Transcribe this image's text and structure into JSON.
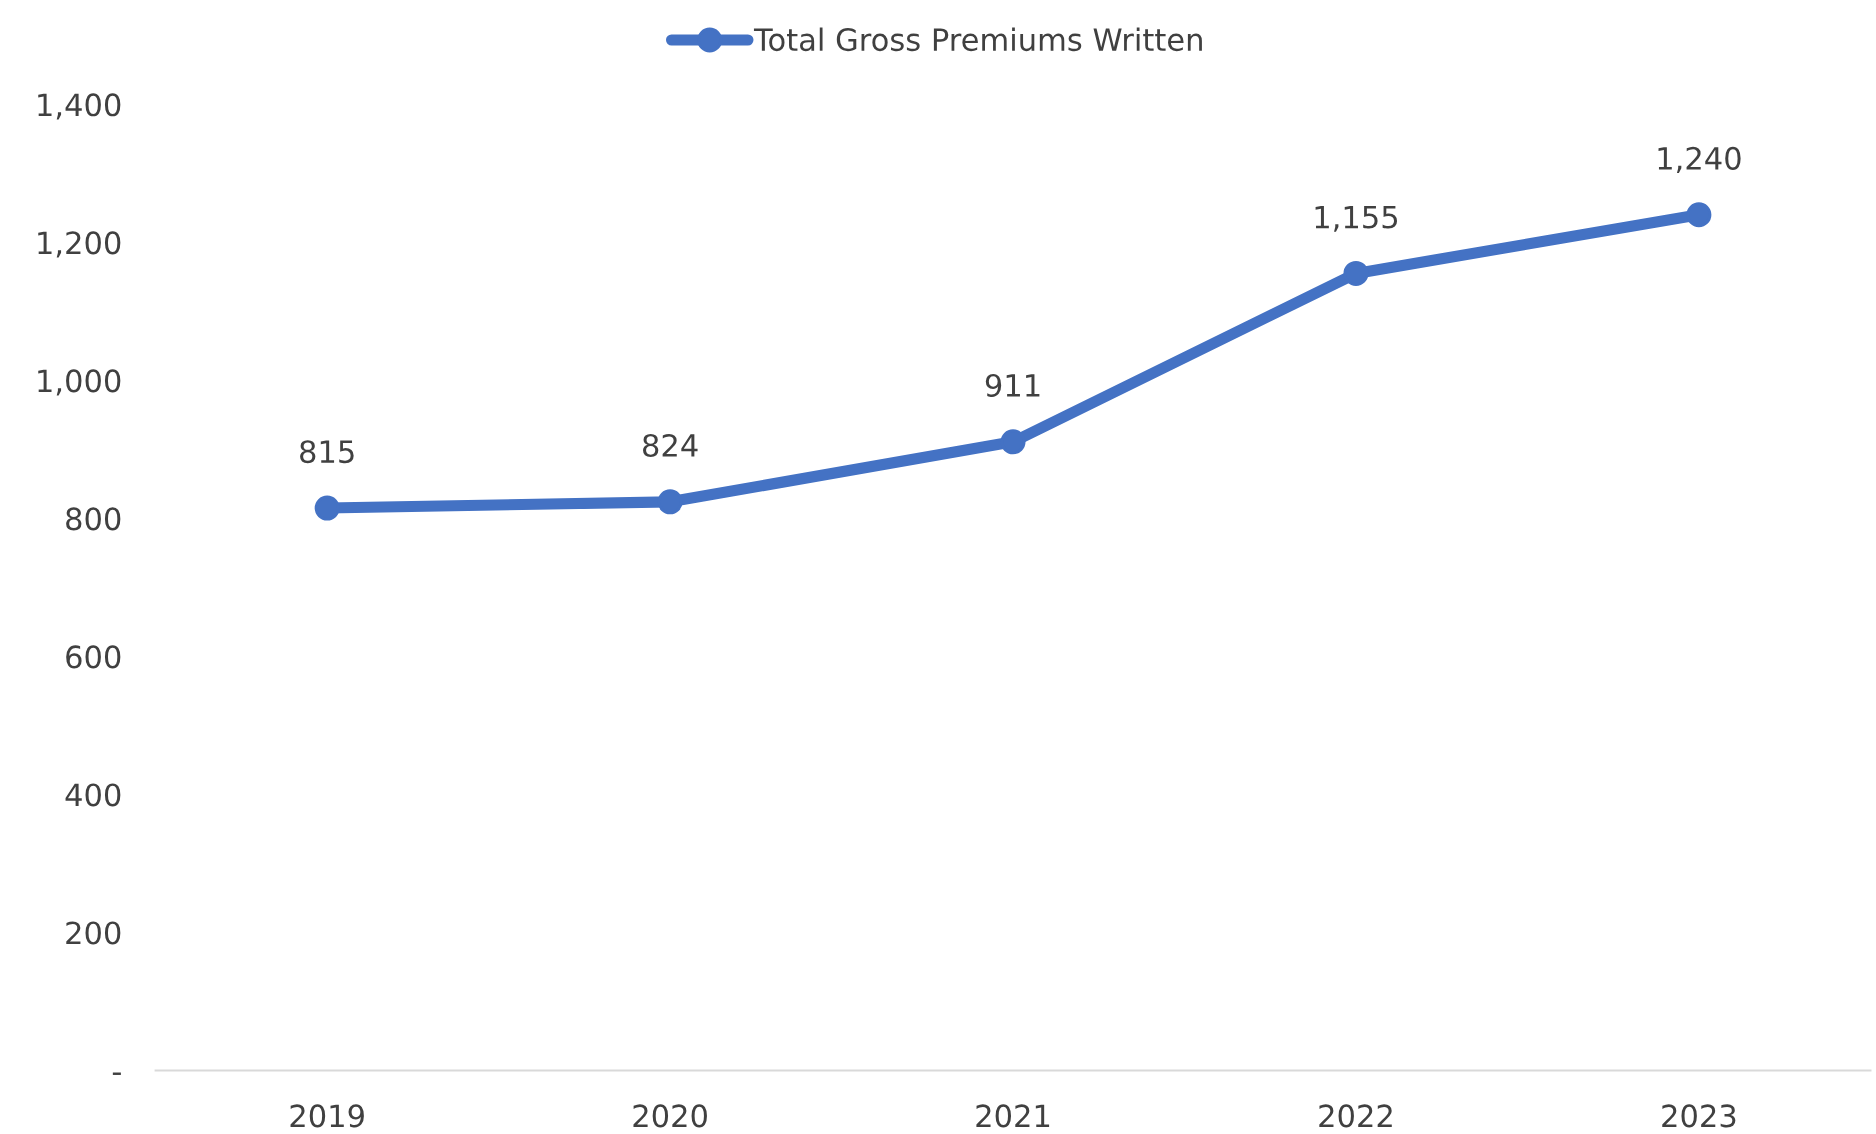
{
  "chart_data": {
    "type": "line",
    "categories": [
      "2019",
      "2020",
      "2021",
      "2022",
      "2023"
    ],
    "series": [
      {
        "name": "Total Gross Premiums Written",
        "color": "#4472c4",
        "values": [
          815,
          824,
          911,
          1155,
          1240
        ],
        "value_labels": [
          "815",
          "824",
          "911",
          "1,155",
          "1,240"
        ]
      }
    ],
    "ylim": [
      0,
      1400
    ],
    "yticks": [
      {
        "value": 0,
        "label": "-"
      },
      200,
      400,
      600,
      800,
      {
        "value": 1000,
        "label": "1,000"
      },
      {
        "value": 1200,
        "label": "1,200"
      },
      {
        "value": 1400,
        "label": "1,400"
      }
    ],
    "grid": false,
    "legend": "top",
    "marker": "circle",
    "line_style": "solid"
  }
}
